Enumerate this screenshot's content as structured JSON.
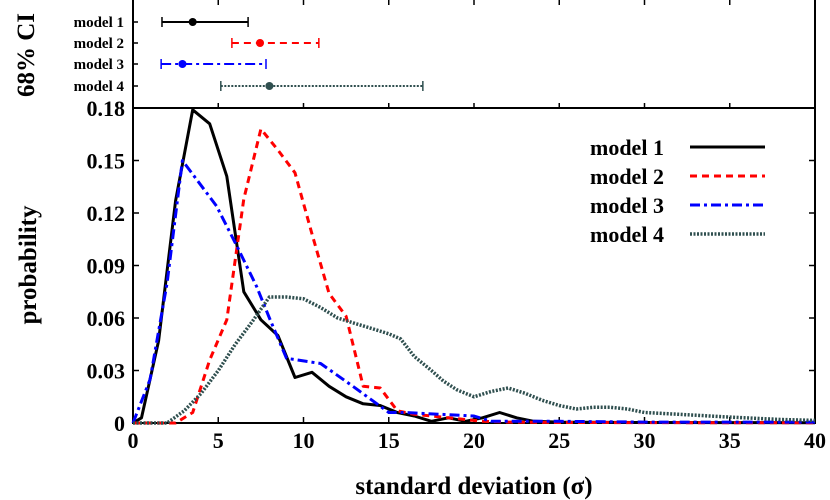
{
  "chart_data": [
    {
      "type": "errorbar",
      "ylabel": "68% CI",
      "xlim": [
        0,
        40
      ],
      "colors": [
        "#000000",
        "#ff0000",
        "#0000ff",
        "#2f4f4f"
      ],
      "rows": [
        {
          "name": "model 1",
          "low": 1.7,
          "center": 3.5,
          "high": 6.75,
          "style": "solid"
        },
        {
          "name": "model 2",
          "low": 5.8,
          "center": 7.45,
          "high": 10.9,
          "style": "dashed"
        },
        {
          "name": "model 3",
          "low": 1.65,
          "center": 2.9,
          "high": 7.8,
          "style": "dashdot"
        },
        {
          "name": "model 4",
          "low": 5.15,
          "center": 8.0,
          "high": 17.0,
          "style": "dotted"
        }
      ]
    },
    {
      "type": "line",
      "xlabel": "standard deviation (σ)",
      "ylabel": "probability",
      "xlim": [
        0,
        40
      ],
      "ylim": [
        0,
        0.18
      ],
      "xticks": [
        "0",
        "5",
        "10",
        "15",
        "20",
        "25",
        "30",
        "35",
        "40"
      ],
      "yticks": [
        "0",
        "0.03",
        "0.06",
        "0.09",
        "0.12",
        "0.15",
        "0.18"
      ],
      "legend": "top-right",
      "grid": false,
      "series": [
        {
          "name": "model 1",
          "color": "#000000",
          "style": "solid",
          "x": [
            0,
            0.5,
            1.5,
            2.5,
            3.5,
            4.5,
            5.5,
            6.5,
            7.5,
            8.5,
            9.5,
            10.5,
            11.5,
            12.5,
            13.5,
            14.5,
            15.5,
            16.5,
            17.5,
            18.5,
            19.5,
            20.5,
            21.5,
            22.5,
            23.5,
            25,
            30,
            35,
            40
          ],
          "y": [
            0,
            0.003,
            0.047,
            0.127,
            0.179,
            0.171,
            0.141,
            0.075,
            0.059,
            0.05,
            0.026,
            0.029,
            0.021,
            0.015,
            0.011,
            0.01,
            0.006,
            0.004,
            0.001,
            0.003,
            0.001,
            0.003,
            0.006,
            0.003,
            0.001,
            0.0005,
            0.0003,
            0.0002,
            0.0001
          ]
        },
        {
          "name": "model 2",
          "color": "#ff0000",
          "style": "dashed",
          "x": [
            0,
            1.5,
            2.5,
            3.5,
            4.5,
            5.5,
            6.5,
            7.5,
            8.5,
            9.5,
            10.5,
            11.5,
            12.5,
            13.5,
            14.5,
            15.5,
            16.5,
            17.5,
            18.5,
            19.5,
            20.5,
            22,
            25,
            30,
            35,
            40
          ],
          "y": [
            0,
            0,
            0,
            0.006,
            0.036,
            0.059,
            0.128,
            0.168,
            0.156,
            0.143,
            0.108,
            0.074,
            0.061,
            0.021,
            0.02,
            0.007,
            0.005,
            0.004,
            0.003,
            0.002,
            0.001,
            0.0005,
            0.0003,
            0.0002,
            0.0001,
            0.0001
          ]
        },
        {
          "name": "model 3",
          "color": "#0000ff",
          "style": "dashdot",
          "x": [
            0,
            1,
            2,
            2.9,
            4.9,
            6.1,
            7.25,
            8,
            9,
            11,
            12.9,
            15,
            16,
            18,
            20,
            21,
            25,
            30,
            35,
            40
          ],
          "y": [
            0,
            0.025,
            0.08,
            0.15,
            0.124,
            0.101,
            0.078,
            0.06,
            0.037,
            0.034,
            0.021,
            0.006,
            0.006,
            0.005,
            0.004,
            0.001,
            0.001,
            0.0005,
            0.0005,
            0.0005
          ]
        },
        {
          "name": "model 4",
          "color": "#2f4f4f",
          "style": "dotted",
          "x": [
            0,
            1,
            2,
            3,
            4,
            5,
            6,
            7,
            8,
            9,
            10,
            11,
            12,
            13,
            14,
            15,
            15.7,
            16.5,
            17.5,
            18.2,
            19,
            20,
            21,
            22,
            23,
            24,
            25,
            26,
            27,
            28,
            29,
            30,
            32,
            35,
            38,
            40
          ],
          "y": [
            0,
            0,
            0,
            0.007,
            0.017,
            0.03,
            0.045,
            0.058,
            0.072,
            0.072,
            0.071,
            0.066,
            0.06,
            0.057,
            0.054,
            0.051,
            0.048,
            0.038,
            0.03,
            0.024,
            0.019,
            0.015,
            0.018,
            0.02,
            0.017,
            0.013,
            0.01,
            0.008,
            0.009,
            0.009,
            0.008,
            0.006,
            0.005,
            0.0034,
            0.002,
            0.0015
          ]
        }
      ]
    }
  ]
}
